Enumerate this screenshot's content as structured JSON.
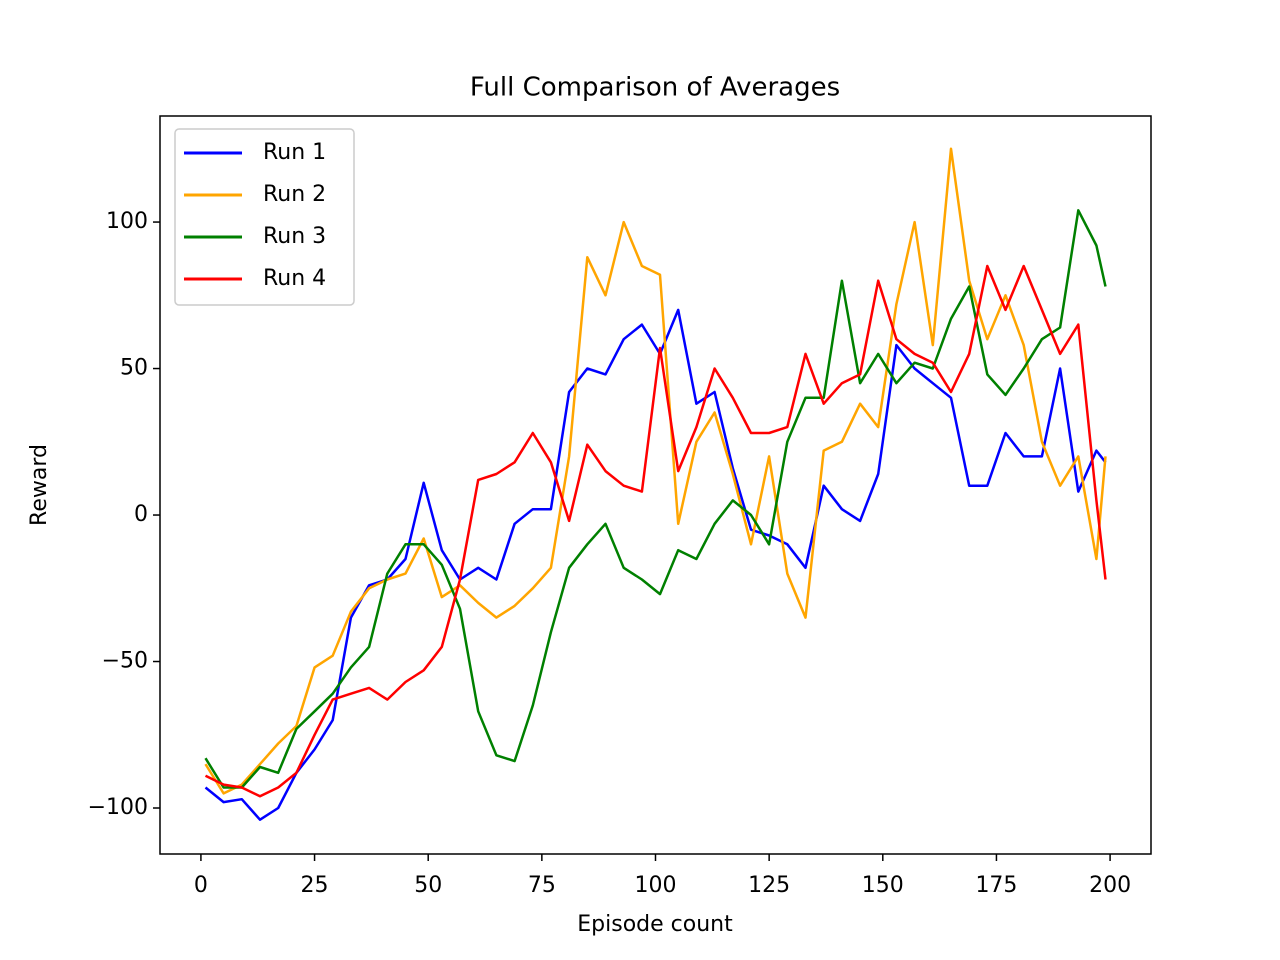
{
  "chart_data": {
    "type": "line",
    "title": "Full Comparison of Averages",
    "xlabel": "Episode count",
    "ylabel": "Reward",
    "x": [
      1,
      5,
      9,
      13,
      17,
      21,
      25,
      29,
      33,
      37,
      41,
      45,
      49,
      53,
      57,
      61,
      65,
      69,
      73,
      77,
      81,
      85,
      89,
      93,
      97,
      101,
      105,
      109,
      113,
      117,
      121,
      125,
      129,
      133,
      137,
      141,
      145,
      149,
      153,
      157,
      161,
      165,
      169,
      173,
      177,
      181,
      185,
      189,
      193,
      197,
      199
    ],
    "series": [
      {
        "name": "Run 1",
        "color": "#0000ff",
        "values": [
          -93,
          -98,
          -97,
          -104,
          -100,
          -88,
          -80,
          -70,
          -35,
          -24,
          -22,
          -15,
          11,
          -12,
          -22,
          -18,
          -22,
          -3,
          2,
          2,
          42,
          50,
          48,
          60,
          65,
          55,
          70,
          38,
          42,
          16,
          -5,
          -7,
          -10,
          -18,
          10,
          2,
          -2,
          14,
          58,
          50,
          45,
          40,
          10,
          10,
          28,
          20,
          20,
          50,
          8,
          22,
          18
        ]
      },
      {
        "name": "Run 2",
        "color": "#ffa500",
        "values": [
          -85,
          -95,
          -92,
          -85,
          -78,
          -72,
          -52,
          -48,
          -33,
          -25,
          -22,
          -20,
          -8,
          -28,
          -24,
          -30,
          -35,
          -31,
          -25,
          -18,
          20,
          88,
          75,
          100,
          85,
          82,
          -3,
          25,
          35,
          14,
          -10,
          20,
          -20,
          -35,
          22,
          25,
          38,
          30,
          72,
          100,
          58,
          125,
          80,
          60,
          75,
          58,
          25,
          10,
          20,
          -15,
          20
        ]
      },
      {
        "name": "Run 3",
        "color": "#008000",
        "values": [
          -83,
          -93,
          -93,
          -86,
          -88,
          -73,
          -67,
          -61,
          -52,
          -45,
          -20,
          -10,
          -10,
          -17,
          -32,
          -67,
          -82,
          -84,
          -65,
          -40,
          -18,
          -10,
          -3,
          -18,
          -22,
          -27,
          -12,
          -15,
          -3,
          5,
          0,
          -10,
          25,
          40,
          40,
          80,
          45,
          55,
          45,
          52,
          50,
          67,
          78,
          48,
          41,
          50,
          60,
          64,
          104,
          92,
          78
        ]
      },
      {
        "name": "Run 4",
        "color": "#ff0000",
        "values": [
          -89,
          -92,
          -93,
          -96,
          -93,
          -88,
          -75,
          -63,
          -61,
          -59,
          -63,
          -57,
          -53,
          -45,
          -22,
          12,
          14,
          18,
          28,
          18,
          -2,
          24,
          15,
          10,
          8,
          57,
          15,
          30,
          50,
          40,
          28,
          28,
          30,
          55,
          38,
          45,
          48,
          80,
          60,
          55,
          52,
          42,
          55,
          85,
          70,
          85,
          70,
          55,
          65,
          5,
          -22
        ]
      }
    ],
    "xlim": [
      -9,
      209
    ],
    "ylim": [
      -115.7,
      136.2
    ],
    "xticks": [
      0,
      25,
      50,
      75,
      100,
      125,
      150,
      175,
      200
    ],
    "yticks": [
      {
        "value": -100,
        "label": "−100"
      },
      {
        "value": -50,
        "label": "−50"
      },
      0,
      50,
      100
    ],
    "legend": "upper left"
  }
}
